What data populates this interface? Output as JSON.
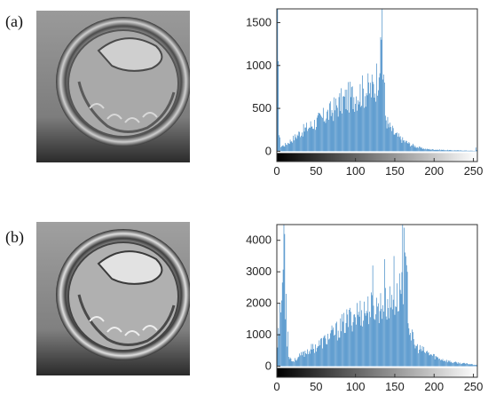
{
  "panels": [
    {
      "label": "(a)"
    },
    {
      "label": "(b)"
    }
  ],
  "colors": {
    "bar": "#2f7fc1",
    "axis": "#333333",
    "cell_dark": "#2a2a2a",
    "cell_light": "#9c9c9c",
    "background_top": "#8f8f8f"
  },
  "chart_data": [
    {
      "type": "bar",
      "panel": "(a)",
      "title": "",
      "xlabel": "",
      "ylabel": "",
      "xlim": [
        0,
        255
      ],
      "ylim": [
        -120,
        1660
      ],
      "xticks": [
        0,
        50,
        100,
        150,
        200,
        250
      ],
      "yticks": [
        0,
        500,
        1000,
        1500
      ],
      "colorbar": "grayscale 0-255",
      "peaks": [
        {
          "x": 1,
          "value": 1660
        },
        {
          "x": 2,
          "value": 1050
        },
        {
          "x": 134,
          "value": 1660
        },
        {
          "x": 133,
          "value": 1300
        }
      ],
      "envelope": [
        [
          0,
          500
        ],
        [
          3,
          200
        ],
        [
          5,
          60
        ],
        [
          10,
          70
        ],
        [
          20,
          140
        ],
        [
          30,
          220
        ],
        [
          40,
          280
        ],
        [
          50,
          340
        ],
        [
          60,
          400
        ],
        [
          70,
          470
        ],
        [
          80,
          560
        ],
        [
          90,
          620
        ],
        [
          100,
          660
        ],
        [
          110,
          700
        ],
        [
          120,
          720
        ],
        [
          125,
          760
        ],
        [
          128,
          900
        ],
        [
          130,
          1100
        ],
        [
          136,
          900
        ],
        [
          138,
          420
        ],
        [
          142,
          300
        ],
        [
          150,
          200
        ],
        [
          160,
          130
        ],
        [
          170,
          80
        ],
        [
          180,
          45
        ],
        [
          190,
          25
        ],
        [
          200,
          20
        ],
        [
          220,
          12
        ],
        [
          240,
          8
        ],
        [
          252,
          5
        ],
        [
          253,
          40
        ],
        [
          254,
          10
        ],
        [
          255,
          0
        ]
      ]
    },
    {
      "type": "bar",
      "panel": "(b)",
      "title": "",
      "xlabel": "",
      "ylabel": "",
      "xlim": [
        0,
        255
      ],
      "ylim": [
        -350,
        4500
      ],
      "xticks": [
        0,
        50,
        100,
        150,
        200,
        250
      ],
      "yticks": [
        0,
        1000,
        2000,
        3000,
        4000
      ],
      "colorbar": "grayscale 0-255",
      "peaks": [
        {
          "x": 9,
          "value": 4500
        },
        {
          "x": 10,
          "value": 4200
        },
        {
          "x": 12,
          "value": 2300
        },
        {
          "x": 14,
          "value": 1100
        },
        {
          "x": 122,
          "value": 3200
        },
        {
          "x": 137,
          "value": 3400
        },
        {
          "x": 149,
          "value": 3500
        },
        {
          "x": 160,
          "value": 4500
        },
        {
          "x": 162,
          "value": 4400
        },
        {
          "x": 166,
          "value": 3000
        }
      ],
      "envelope": [
        [
          0,
          600
        ],
        [
          5,
          1800
        ],
        [
          8,
          3000
        ],
        [
          12,
          1000
        ],
        [
          15,
          350
        ],
        [
          20,
          150
        ],
        [
          30,
          330
        ],
        [
          40,
          500
        ],
        [
          50,
          620
        ],
        [
          60,
          800
        ],
        [
          70,
          1000
        ],
        [
          80,
          1200
        ],
        [
          90,
          1450
        ],
        [
          100,
          1650
        ],
        [
          110,
          1750
        ],
        [
          120,
          1850
        ],
        [
          130,
          1900
        ],
        [
          140,
          1950
        ],
        [
          150,
          2050
        ],
        [
          155,
          2200
        ],
        [
          158,
          2700
        ],
        [
          164,
          2900
        ],
        [
          168,
          1300
        ],
        [
          175,
          650
        ],
        [
          185,
          500
        ],
        [
          195,
          380
        ],
        [
          205,
          260
        ],
        [
          215,
          180
        ],
        [
          225,
          120
        ],
        [
          240,
          80
        ],
        [
          250,
          60
        ],
        [
          255,
          40
        ]
      ]
    }
  ]
}
